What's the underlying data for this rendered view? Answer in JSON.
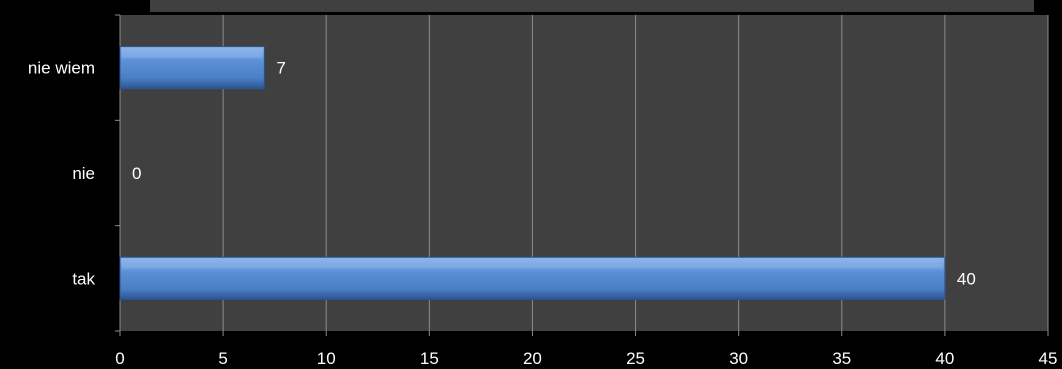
{
  "chart_data": {
    "type": "bar",
    "orientation": "horizontal",
    "categories": [
      "nie wiem",
      "nie",
      "tak"
    ],
    "values": [
      7,
      0,
      40
    ],
    "data_labels": [
      "7",
      "0",
      "40"
    ],
    "xlim": [
      0,
      45
    ],
    "x_ticks": [
      0,
      5,
      10,
      15,
      20,
      25,
      30,
      35,
      40,
      45
    ],
    "grid": true,
    "legend": "none"
  },
  "colors": {
    "background": "#000000",
    "plot_area": "#404040",
    "gridline": "#8c8c8c",
    "bar": "#4a7fc6",
    "bar_highlight": "#8fb6ec",
    "bar_shadow": "#2a5590",
    "text": "#ffffff"
  }
}
